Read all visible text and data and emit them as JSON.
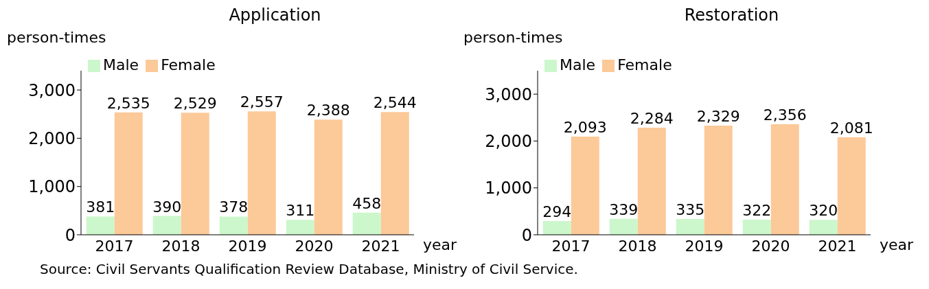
{
  "chart_data": [
    {
      "type": "bar",
      "title": "Application",
      "ylabel": "person-times",
      "xlabel": "year",
      "categories": [
        "2017",
        "2018",
        "2019",
        "2020",
        "2021"
      ],
      "series": [
        {
          "name": "Male",
          "color": "#ccf7cc",
          "values": [
            381,
            390,
            378,
            311,
            458
          ],
          "value_labels": [
            "381",
            "390",
            "378",
            "311",
            "458"
          ]
        },
        {
          "name": "Female",
          "color": "#fcc998",
          "values": [
            2535,
            2529,
            2557,
            2388,
            2544
          ],
          "value_labels": [
            "2,535",
            "2,529",
            "2,557",
            "2,388",
            "2,544"
          ]
        }
      ],
      "ylim": [
        0,
        3400
      ],
      "yticks": [
        0,
        {
          "value": 1000,
          "label": "1,000"
        },
        {
          "value": 2000,
          "label": "2,000"
        },
        {
          "value": 3000,
          "label": "3,000"
        }
      ],
      "legend": "top left",
      "annotations": [
        "Source: Civil Servants Qualification Review Database, Ministry of Civil Service."
      ]
    },
    {
      "type": "bar",
      "title": "Restoration",
      "ylabel": "person-times",
      "xlabel": "year",
      "categories": [
        "2017",
        "2018",
        "2019",
        "2020",
        "2021"
      ],
      "series": [
        {
          "name": "Male",
          "color": "#ccf7cc",
          "values": [
            294,
            339,
            335,
            322,
            320
          ],
          "value_labels": [
            "294",
            "339",
            "335",
            "322",
            "320"
          ]
        },
        {
          "name": "Female",
          "color": "#fcc998",
          "values": [
            2093,
            2284,
            2329,
            2356,
            2081
          ],
          "value_labels": [
            "2,093",
            "2,284",
            "2,329",
            "2,356",
            "2,081"
          ]
        }
      ],
      "ylim": [
        0,
        3500
      ],
      "yticks": [
        0,
        {
          "value": 1000,
          "label": "1,000"
        },
        {
          "value": 2000,
          "label": "2,000"
        },
        {
          "value": 3000,
          "label": "3,000"
        }
      ],
      "legend": "top left"
    }
  ]
}
